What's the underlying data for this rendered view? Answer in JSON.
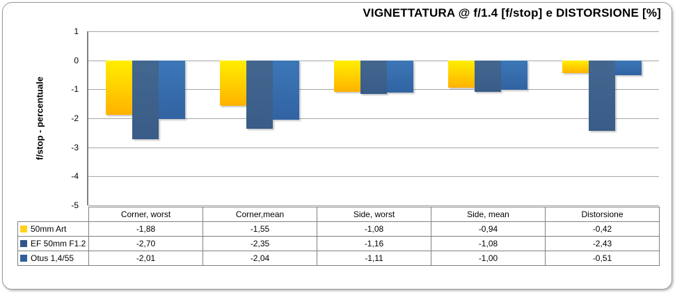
{
  "chart_data": {
    "type": "bar",
    "title": "VIGNETTATURA @ f/1.4 [f/stop] e DISTORSIONE [%]",
    "ylabel": "f/stop - percentuale",
    "ylim": [
      -5,
      1
    ],
    "yticks": [
      1,
      0,
      -1,
      -2,
      -3,
      -4,
      -5
    ],
    "grid": true,
    "legend_position": "data-table-left",
    "categories": [
      "Corner, worst",
      "Corner,mean",
      "Side, worst",
      "Side, mean",
      "Distorsione"
    ],
    "series": [
      {
        "name": "50mm Art",
        "color_top": "#ffee00",
        "color_bottom": "#ffb200",
        "swatch": "#ffd21e",
        "values": [
          -1.88,
          -1.55,
          -1.08,
          -0.94,
          -0.42
        ],
        "display": [
          "-1,88",
          "-1,55",
          "-1,08",
          "-0,94",
          "-0,42"
        ]
      },
      {
        "name": "EF 50mm F1.2 L",
        "color_top": "#43678f",
        "color_bottom": "#395c88",
        "swatch": "#2f5788",
        "values": [
          -2.7,
          -2.35,
          -1.16,
          -1.08,
          -2.43
        ],
        "display": [
          "-2,70",
          "-2,35",
          "-1,16",
          "-1,08",
          "-2,43"
        ]
      },
      {
        "name": "Otus 1,4/55",
        "color_top": "#3c77b8",
        "color_bottom": "#3163a2",
        "swatch": "#30609a",
        "values": [
          -2.01,
          -2.04,
          -1.11,
          -1.0,
          -0.51
        ],
        "display": [
          "-2,01",
          "-2,04",
          "-1,11",
          "-1,00",
          "-0,51"
        ]
      }
    ],
    "colors": {
      "gridline": "#a6a6a6",
      "axis": "#808080",
      "table_border": "#808080",
      "title_text": "#000000",
      "card_border": "#9a9a9a"
    }
  }
}
